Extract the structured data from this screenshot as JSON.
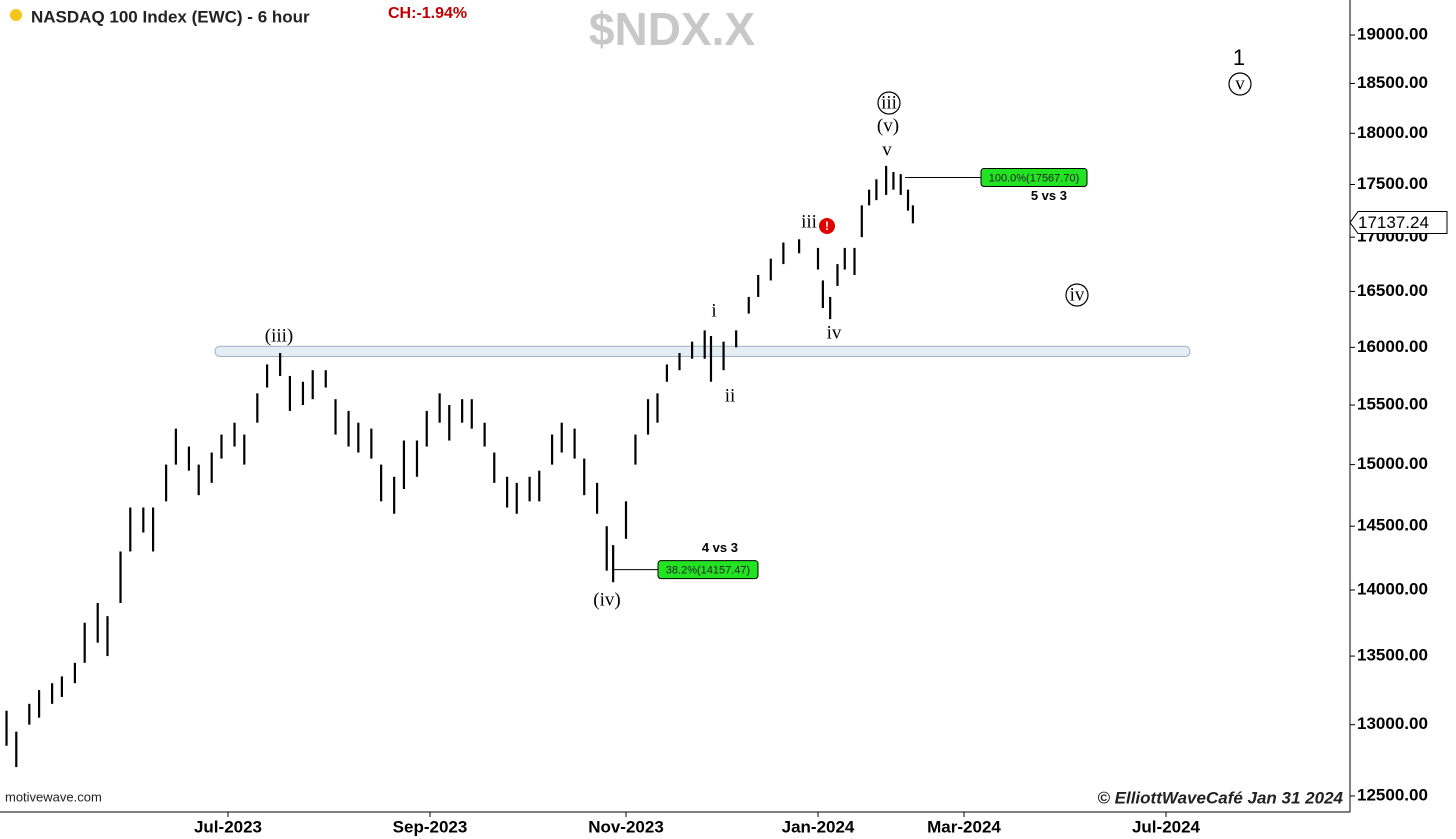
{
  "chart_data": {
    "type": "hilo",
    "header": {
      "title": "NASDAQ 100 Index (EWC) - 6 hour",
      "change": "CH:-1.94%"
    },
    "watermark": "$NDX.X",
    "source": "motivewave.com",
    "credit": "© ElliottWaveCafé Jan 31 2024",
    "color": "#000000",
    "log_scale": true,
    "xlim": [
      "2023-04-22",
      "2024-10-20"
    ],
    "xticks": [
      {
        "value": "2023-07-01",
        "label": "Jul-2023"
      },
      {
        "value": "2023-09-01",
        "label": "Sep-2023"
      },
      {
        "value": "2023-11-01",
        "label": "Nov-2023"
      },
      {
        "value": "2024-01-01",
        "label": "Jan-2024"
      },
      {
        "value": "2024-03-01",
        "label": "Mar-2024"
      },
      {
        "value": "2024-07-01",
        "label": "Jul-2024"
      }
    ],
    "ylim": [
      12390,
      19370
    ],
    "yticks": [
      {
        "value": 12500,
        "label": "12500.00"
      },
      {
        "value": 13000,
        "label": "13000.00"
      },
      {
        "value": 13500,
        "label": "13500.00"
      },
      {
        "value": 14000,
        "label": "14000.00"
      },
      {
        "value": 14500,
        "label": "14500.00"
      },
      {
        "value": 15000,
        "label": "15000.00"
      },
      {
        "value": 15500,
        "label": "15500.00"
      },
      {
        "value": 16000,
        "label": "16000.00"
      },
      {
        "value": 16500,
        "label": "16500.00"
      },
      {
        "value": 17000,
        "label": "17000.00"
      },
      {
        "value": 17500,
        "label": "17500.00"
      },
      {
        "value": 18000,
        "label": "18000.00"
      },
      {
        "value": 18500,
        "label": "18500.00"
      },
      {
        "value": 19000,
        "label": "19000.00"
      }
    ],
    "x": [
      "2023-04-24",
      "2023-04-27",
      "2023-05-01",
      "2023-05-04",
      "2023-05-08",
      "2023-05-11",
      "2023-05-15",
      "2023-05-18",
      "2023-05-22",
      "2023-05-25",
      "2023-05-29",
      "2023-06-01",
      "2023-06-05",
      "2023-06-08",
      "2023-06-12",
      "2023-06-15",
      "2023-06-19",
      "2023-06-22",
      "2023-06-26",
      "2023-06-29",
      "2023-07-03",
      "2023-07-06",
      "2023-07-10",
      "2023-07-13",
      "2023-07-17",
      "2023-07-20",
      "2023-07-24",
      "2023-07-27",
      "2023-07-31",
      "2023-08-03",
      "2023-08-07",
      "2023-08-10",
      "2023-08-14",
      "2023-08-17",
      "2023-08-21",
      "2023-08-24",
      "2023-08-28",
      "2023-08-31",
      "2023-09-04",
      "2023-09-07",
      "2023-09-11",
      "2023-09-14",
      "2023-09-18",
      "2023-09-21",
      "2023-09-25",
      "2023-09-28",
      "2023-10-02",
      "2023-10-05",
      "2023-10-09",
      "2023-10-12",
      "2023-10-16",
      "2023-10-19",
      "2023-10-23",
      "2023-10-26",
      "2023-10-28",
      "2023-11-01",
      "2023-11-04",
      "2023-11-08",
      "2023-11-11",
      "2023-11-14",
      "2023-11-18",
      "2023-11-22",
      "2023-11-26",
      "2023-11-28",
      "2023-12-02",
      "2023-12-06",
      "2023-12-10",
      "2023-12-13",
      "2023-12-17",
      "2023-12-21",
      "2023-12-26",
      "2024-01-01",
      "2024-01-03",
      "2024-01-06",
      "2024-01-09",
      "2024-01-12",
      "2024-01-16",
      "2024-01-19",
      "2024-01-22",
      "2024-01-25",
      "2024-01-29",
      "2024-02-01",
      "2024-02-04",
      "2024-02-07",
      "2024-02-09"
    ],
    "high": [
      13100,
      12950,
      13150,
      13250,
      13300,
      13350,
      13450,
      13750,
      13900,
      13800,
      14300,
      14650,
      14650,
      14650,
      15000,
      15300,
      15150,
      15000,
      15100,
      15250,
      15350,
      15250,
      15600,
      15850,
      15950,
      15750,
      15700,
      15800,
      15800,
      15550,
      15450,
      15350,
      15300,
      15000,
      14900,
      15200,
      15200,
      15450,
      15600,
      15500,
      15550,
      15550,
      15350,
      15100,
      14900,
      14850,
      14900,
      14950,
      15250,
      15350,
      15300,
      15050,
      14850,
      14500,
      14350,
      14700,
      15250,
      15550,
      15600,
      15850,
      15950,
      16050,
      16150,
      16100,
      16050,
      16150,
      16450,
      16650,
      16800,
      16950,
      16980,
      16900,
      16600,
      16450,
      16750,
      16900,
      16900,
      17300,
      17450,
      17550,
      17680,
      17620,
      17600,
      17450,
      17300
    ],
    "low": [
      12850,
      12700,
      13000,
      13050,
      13150,
      13200,
      13300,
      13450,
      13600,
      13500,
      13900,
      14300,
      14450,
      14300,
      14700,
      15000,
      14950,
      14750,
      14850,
      15050,
      15150,
      15000,
      15350,
      15650,
      15750,
      15450,
      15500,
      15550,
      15650,
      15250,
      15150,
      15100,
      15050,
      14700,
      14600,
      14800,
      14900,
      15150,
      15350,
      15200,
      15350,
      15300,
      15150,
      14850,
      14650,
      14600,
      14700,
      14700,
      15000,
      15100,
      15050,
      14750,
      14600,
      14150,
      14060,
      14400,
      15000,
      15250,
      15350,
      15700,
      15800,
      15900,
      15900,
      15700,
      15800,
      16000,
      16300,
      16450,
      16600,
      16750,
      16850,
      16700,
      16350,
      16250,
      16550,
      16700,
      16650,
      17000,
      17300,
      17350,
      17400,
      17450,
      17400,
      17250,
      17130
    ],
    "zone": [
      15920,
      16010
    ],
    "last_price": 17137.24,
    "fib_levels": [
      {
        "value": 17567.7,
        "label": "100.0%(17567.70)",
        "note": "5 vs 3"
      },
      {
        "value": 14157.47,
        "label": "38.2%(14157.47)",
        "note": "4 vs 3"
      }
    ],
    "wave_labels": [
      "(iii)",
      "(iv)",
      "i",
      "ii",
      "iii",
      "iv",
      "v",
      "(v)",
      "iii",
      "1",
      "v",
      "iv"
    ]
  }
}
